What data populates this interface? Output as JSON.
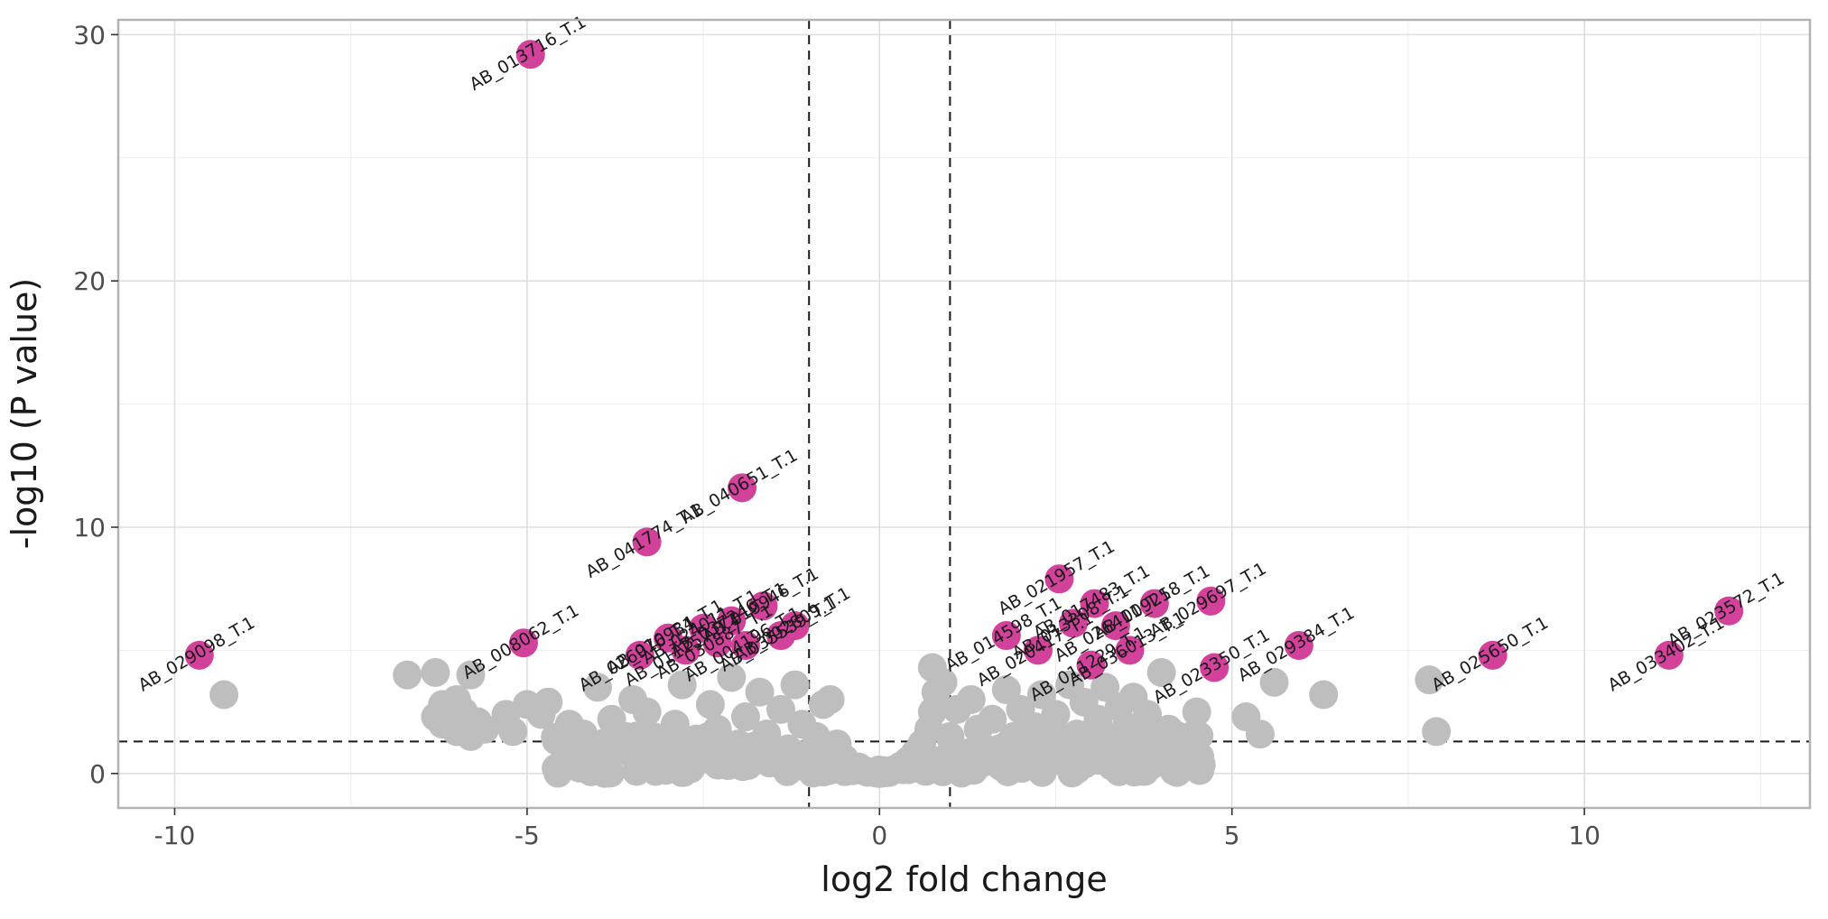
{
  "chart_data": {
    "type": "scatter",
    "title": "",
    "xlabel": "log2 fold change",
    "ylabel": "-log10 (P value)",
    "xlim": [
      -10.8,
      13.2
    ],
    "ylim": [
      -1.4,
      30.6
    ],
    "x_ticks": [
      -10,
      -5,
      0,
      5,
      10
    ],
    "y_ticks": [
      0,
      10,
      20,
      30
    ],
    "x_tick_labels": [
      "-10",
      "-5",
      "0",
      "5",
      "10"
    ],
    "y_tick_labels": [
      "0",
      "10",
      "20",
      "30"
    ],
    "grid": true,
    "legend": "none",
    "thresholds": {
      "vline_neg": -1,
      "vline_pos": 1,
      "hline": 1.3
    },
    "colors": {
      "significant": "#d2429a",
      "not_significant": "#bebebe"
    },
    "series": [
      {
        "role": "significant",
        "points": [
          {
            "x": -4.95,
            "y": 29.2,
            "label": "AB_013716_T.1"
          },
          {
            "x": -1.95,
            "y": 11.6,
            "label": "AB_040651_T.1"
          },
          {
            "x": -3.3,
            "y": 9.4,
            "label": "AB_041774_T.1"
          },
          {
            "x": -9.65,
            "y": 4.8,
            "label": "AB_029098_T.1"
          },
          {
            "x": -5.05,
            "y": 5.3,
            "label": "AB_008062_T.1"
          },
          {
            "x": -3.4,
            "y": 4.8,
            "label": "AB_026976_T.1"
          },
          {
            "x": -3.0,
            "y": 5.5,
            "label": "AB_010934_T.1"
          },
          {
            "x": -2.75,
            "y": 5.0,
            "label": "AB_011257_T.1"
          },
          {
            "x": -2.5,
            "y": 5.9,
            "label": "AB_024011_T.1"
          },
          {
            "x": -2.3,
            "y": 5.3,
            "label": "AB_030887_T.1"
          },
          {
            "x": -2.1,
            "y": 6.2,
            "label": "AB_037246_T.1"
          },
          {
            "x": -1.9,
            "y": 5.2,
            "label": "AB_004196_T.1"
          },
          {
            "x": -1.65,
            "y": 6.8,
            "label": "AB_019946_T.1"
          },
          {
            "x": -1.4,
            "y": 5.6,
            "label": "AB_035539_T.1"
          },
          {
            "x": -1.2,
            "y": 6.0,
            "label": "AB_002809_T.1"
          },
          {
            "x": 1.8,
            "y": 5.6,
            "label": "AB_014598_T.1"
          },
          {
            "x": 2.25,
            "y": 5.0,
            "label": "AB_020417_T.1"
          },
          {
            "x": 2.55,
            "y": 7.9,
            "label": "AB_021957_T.1"
          },
          {
            "x": 2.75,
            "y": 6.1,
            "label": "AB_013308_T.1"
          },
          {
            "x": 3.0,
            "y": 4.4,
            "label": "AB_011229_T.1"
          },
          {
            "x": 3.05,
            "y": 6.9,
            "label": "AB_017483_T.1"
          },
          {
            "x": 3.35,
            "y": 6.0,
            "label": "AB_026411_T.1"
          },
          {
            "x": 3.55,
            "y": 5.0,
            "label": "AB_036013_T.1"
          },
          {
            "x": 3.9,
            "y": 6.9,
            "label": "AB_009258_T.1"
          },
          {
            "x": 4.7,
            "y": 7.0,
            "label": "AB_029697_T.1"
          },
          {
            "x": 4.75,
            "y": 4.3,
            "label": "AB_023350_T.1"
          },
          {
            "x": 5.95,
            "y": 5.2,
            "label": "AB_029384_T.1"
          },
          {
            "x": 8.7,
            "y": 4.8,
            "label": "AB_025650_T.1"
          },
          {
            "x": 11.2,
            "y": 4.8,
            "label": "AB_033402_T.1"
          },
          {
            "x": 12.05,
            "y": 6.6,
            "label": "AB_023572_T.1"
          }
        ]
      },
      {
        "role": "not_significant",
        "points": [
          {
            "x": -9.3,
            "y": 3.2
          },
          {
            "x": -6.7,
            "y": 4.0
          },
          {
            "x": -6.3,
            "y": 4.1
          },
          {
            "x": -5.8,
            "y": 4.0
          },
          {
            "x": -6.2,
            "y": 2.8
          },
          {
            "x": -6.0,
            "y": 3.0
          },
          {
            "x": -6.3,
            "y": 2.3
          },
          {
            "x": -5.9,
            "y": 2.5
          },
          {
            "x": -6.2,
            "y": 2.0
          },
          {
            "x": -5.7,
            "y": 2.1
          },
          {
            "x": -6.0,
            "y": 1.7
          },
          {
            "x": -5.6,
            "y": 1.8
          },
          {
            "x": -5.8,
            "y": 1.5
          },
          {
            "x": -5.3,
            "y": 2.4
          },
          {
            "x": -5.0,
            "y": 2.8
          },
          {
            "x": -4.8,
            "y": 2.4
          },
          {
            "x": -4.7,
            "y": 2.9
          },
          {
            "x": -5.2,
            "y": 1.7
          },
          {
            "x": -4.5,
            "y": 1.2
          },
          {
            "x": -4.4,
            "y": 2.0
          },
          {
            "x": -4.2,
            "y": 1.6
          },
          {
            "x": -4.0,
            "y": 3.5
          },
          {
            "x": -3.8,
            "y": 2.2
          },
          {
            "x": -3.9,
            "y": 1.0
          },
          {
            "x": -3.6,
            "y": 1.5
          },
          {
            "x": -3.5,
            "y": 3.0
          },
          {
            "x": -3.3,
            "y": 2.5
          },
          {
            "x": -3.2,
            "y": 1.1
          },
          {
            "x": -3.0,
            "y": 0.8
          },
          {
            "x": -2.9,
            "y": 2.0
          },
          {
            "x": -2.8,
            "y": 3.6
          },
          {
            "x": -2.6,
            "y": 1.4
          },
          {
            "x": -2.5,
            "y": 0.6
          },
          {
            "x": -2.4,
            "y": 2.8
          },
          {
            "x": -2.3,
            "y": 1.8
          },
          {
            "x": -2.2,
            "y": 0.9
          },
          {
            "x": -2.1,
            "y": 3.9
          },
          {
            "x": -2.0,
            "y": 1.2
          },
          {
            "x": -1.9,
            "y": 2.3
          },
          {
            "x": -1.8,
            "y": 0.5
          },
          {
            "x": -1.7,
            "y": 3.3
          },
          {
            "x": -1.6,
            "y": 1.6
          },
          {
            "x": -1.5,
            "y": 0.8
          },
          {
            "x": -1.4,
            "y": 2.6
          },
          {
            "x": -1.3,
            "y": 1.0
          },
          {
            "x": -1.2,
            "y": 3.6
          },
          {
            "x": -1.1,
            "y": 2.0
          },
          {
            "x": -1.0,
            "y": 0.7
          },
          {
            "x": -0.9,
            "y": 1.5
          },
          {
            "x": -0.8,
            "y": 2.8
          },
          {
            "x": -0.7,
            "y": 3.0
          },
          {
            "x": -0.6,
            "y": 1.2
          },
          {
            "x": -0.5,
            "y": 0.6
          },
          {
            "x": -0.4,
            "y": 0.3
          },
          {
            "x": -0.3,
            "y": 0.2
          },
          {
            "x": -0.2,
            "y": 0.1
          },
          {
            "x": -0.1,
            "y": 0.05
          },
          {
            "x": 0.0,
            "y": 0.0
          },
          {
            "x": 0.1,
            "y": 0.08
          },
          {
            "x": 0.2,
            "y": 0.15
          },
          {
            "x": 0.3,
            "y": 0.3
          },
          {
            "x": 0.4,
            "y": 0.5
          },
          {
            "x": 0.5,
            "y": 0.8
          },
          {
            "x": 0.6,
            "y": 1.2
          },
          {
            "x": 0.7,
            "y": 1.8
          },
          {
            "x": 0.75,
            "y": 2.5
          },
          {
            "x": 0.8,
            "y": 3.3
          },
          {
            "x": 0.75,
            "y": 4.3
          },
          {
            "x": 0.9,
            "y": 3.7
          },
          {
            "x": 1.0,
            "y": 1.5
          },
          {
            "x": 1.1,
            "y": 2.6
          },
          {
            "x": 1.2,
            "y": 0.8
          },
          {
            "x": 1.3,
            "y": 3.0
          },
          {
            "x": 1.4,
            "y": 1.8
          },
          {
            "x": 1.5,
            "y": 0.6
          },
          {
            "x": 1.6,
            "y": 2.2
          },
          {
            "x": 1.7,
            "y": 1.0
          },
          {
            "x": 1.8,
            "y": 3.4
          },
          {
            "x": 1.9,
            "y": 1.5
          },
          {
            "x": 2.0,
            "y": 2.6
          },
          {
            "x": 2.1,
            "y": 0.7
          },
          {
            "x": 2.2,
            "y": 1.9
          },
          {
            "x": 2.3,
            "y": 3.2
          },
          {
            "x": 2.4,
            "y": 1.2
          },
          {
            "x": 2.5,
            "y": 2.4
          },
          {
            "x": 2.6,
            "y": 0.9
          },
          {
            "x": 2.7,
            "y": 3.6
          },
          {
            "x": 2.8,
            "y": 1.6
          },
          {
            "x": 2.9,
            "y": 2.9
          },
          {
            "x": 3.0,
            "y": 1.0
          },
          {
            "x": 3.1,
            "y": 2.2
          },
          {
            "x": 3.2,
            "y": 3.5
          },
          {
            "x": 3.3,
            "y": 1.4
          },
          {
            "x": 3.4,
            "y": 2.7
          },
          {
            "x": 3.5,
            "y": 1.9
          },
          {
            "x": 3.6,
            "y": 3.1
          },
          {
            "x": 3.7,
            "y": 1.1
          },
          {
            "x": 3.8,
            "y": 2.4
          },
          {
            "x": 3.9,
            "y": 0.7
          },
          {
            "x": 4.0,
            "y": 4.1
          },
          {
            "x": 4.1,
            "y": 1.8
          },
          {
            "x": 4.3,
            "y": 1.3
          },
          {
            "x": 4.5,
            "y": 2.5
          },
          {
            "x": 5.2,
            "y": 2.3
          },
          {
            "x": 5.4,
            "y": 1.6
          },
          {
            "x": 5.6,
            "y": 3.7
          },
          {
            "x": 6.3,
            "y": 3.2
          },
          {
            "x": 7.8,
            "y": 3.8
          },
          {
            "x": 7.9,
            "y": 1.7
          }
        ]
      }
    ]
  }
}
